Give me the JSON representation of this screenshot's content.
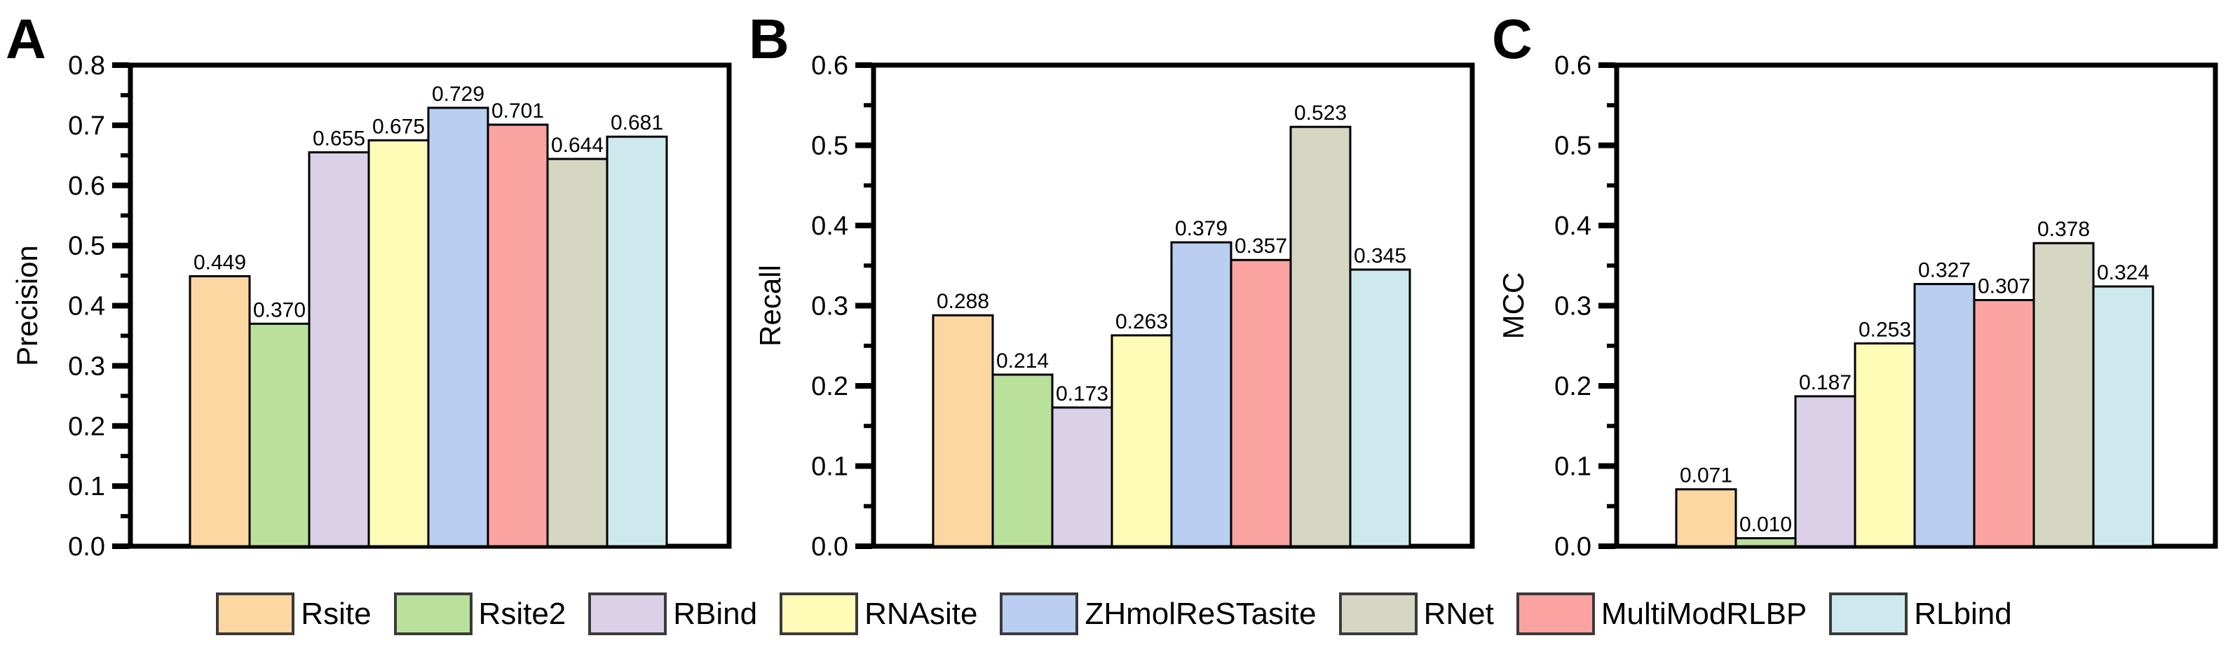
{
  "figure": {
    "background": "#ffffff",
    "panel_letters": [
      "A",
      "B",
      "C"
    ]
  },
  "chart_data": [
    {
      "type": "bar",
      "panel_label": "A",
      "ylabel": "Precision",
      "ylim": [
        0,
        0.8
      ],
      "ytick_step": 0.1,
      "minor_tick_step": 0.05,
      "grid": false,
      "categories": [
        "Rsite",
        "Rsite2",
        "RBind",
        "RNAsite",
        "ZHmolReSTasite",
        "MultiModRLBP",
        "RNet",
        "RLbind"
      ],
      "values": [
        0.449,
        0.37,
        0.655,
        0.675,
        0.729,
        0.701,
        0.644,
        0.681
      ],
      "value_labels": [
        "0.449",
        "0.370",
        "0.655",
        "0.675",
        "0.729",
        "0.701",
        "0.644",
        "0.681"
      ],
      "bar_colors": [
        "#FCD7A2",
        "#BAE19C",
        "#DAD0E8",
        "#FEFCB7",
        "#B9CEF0",
        "#FBA3A1",
        "#D6D7C2",
        "#CDE9EE"
      ]
    },
    {
      "type": "bar",
      "panel_label": "B",
      "ylabel": "Recall",
      "ylim": [
        0,
        0.6
      ],
      "ytick_step": 0.1,
      "minor_tick_step": 0.05,
      "grid": false,
      "categories": [
        "Rsite",
        "Rsite2",
        "RBind",
        "RNAsite",
        "ZHmolReSTasite",
        "MultiModRLBP",
        "RNet",
        "RLbind"
      ],
      "values": [
        0.288,
        0.214,
        0.173,
        0.263,
        0.379,
        0.357,
        0.523,
        0.345
      ],
      "value_labels": [
        "0.288",
        "0.214",
        "0.173",
        "0.263",
        "0.379",
        "0.357",
        "0.523",
        "0.345"
      ],
      "bar_colors": [
        "#FCD7A2",
        "#BAE19C",
        "#DAD0E8",
        "#FEFCB7",
        "#B9CEF0",
        "#FBA3A1",
        "#D6D7C2",
        "#CDE9EE"
      ]
    },
    {
      "type": "bar",
      "panel_label": "C",
      "ylabel": "MCC",
      "ylim": [
        0,
        0.6
      ],
      "ytick_step": 0.1,
      "minor_tick_step": 0.05,
      "grid": false,
      "categories": [
        "Rsite",
        "Rsite2",
        "RBind",
        "RNAsite",
        "ZHmolReSTasite",
        "MultiModRLBP",
        "RNet",
        "RLbind"
      ],
      "values": [
        0.071,
        0.01,
        0.187,
        0.253,
        0.327,
        0.307,
        0.378,
        0.324
      ],
      "value_labels": [
        "0.071",
        "0.010",
        "0.187",
        "0.253",
        "0.327",
        "0.307",
        "0.378",
        "0.324"
      ],
      "bar_colors": [
        "#FCD7A2",
        "#BAE19C",
        "#DAD0E8",
        "#FEFCB7",
        "#B9CEF0",
        "#FBA3A1",
        "#D6D7C2",
        "#CDE9EE"
      ]
    }
  ],
  "legend": {
    "items": [
      {
        "label": "Rsite",
        "color": "#FCD7A2"
      },
      {
        "label": "Rsite2",
        "color": "#BAE19C"
      },
      {
        "label": "RBind",
        "color": "#DAD0E8"
      },
      {
        "label": "RNAsite",
        "color": "#FEFCB7"
      },
      {
        "label": "ZHmolReSTasite",
        "color": "#B9CEF0"
      },
      {
        "label": "RNet",
        "color": "#D6D7C2"
      },
      {
        "label": "MultiModRLBP",
        "color": "#FBA3A1"
      },
      {
        "label": "RLbind",
        "color": "#CDE9EE"
      }
    ]
  },
  "colors": {
    "axis": "#000000",
    "text": "#000000",
    "bar_outline": "#000000",
    "swatch_border": "#3a3a3a",
    "background": "#ffffff"
  }
}
